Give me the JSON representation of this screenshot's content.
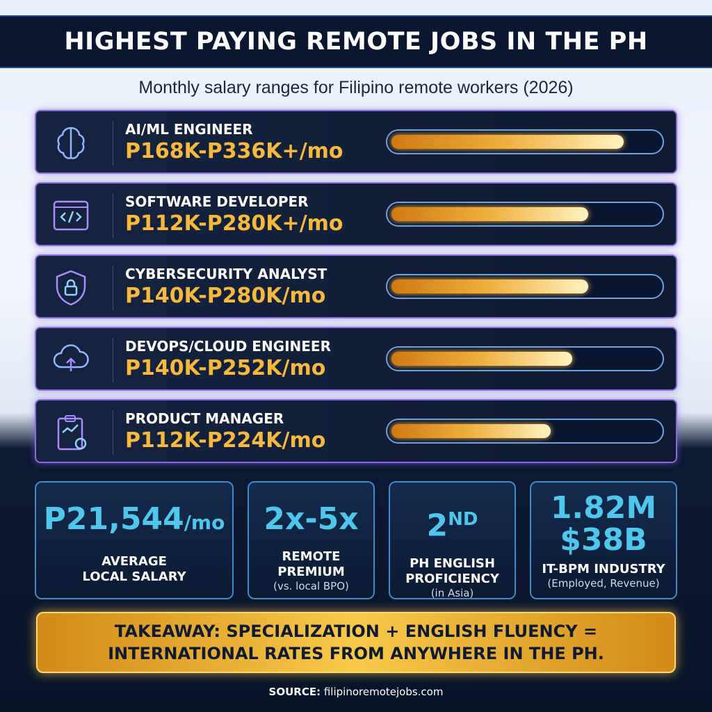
{
  "title": "HIGHEST PAYING REMOTE JOBS IN THE PH",
  "subtitle": "Monthly salary ranges for Filipino remote workers (2026)",
  "jobs": [
    {
      "icon": "brain-icon",
      "name": "AI/ML ENGINEER",
      "range": "P168K-P336K+/mo",
      "fill": 0.86
    },
    {
      "icon": "code-window-icon",
      "name": "SOFTWARE DEVELOPER",
      "range": "P112K-P280K+/mo",
      "fill": 0.73
    },
    {
      "icon": "shield-lock-icon",
      "name": "CYBERSECURITY ANALYST",
      "range": "P140K-P280K/mo",
      "fill": 0.73
    },
    {
      "icon": "cloud-icon",
      "name": "DEVOPS/CLOUD ENGINEER",
      "range": "P140K-P252K/mo",
      "fill": 0.67
    },
    {
      "icon": "clipboard-chart-icon",
      "name": "PRODUCT MANAGER",
      "range": "P112K-P224K/mo",
      "fill": 0.59
    }
  ],
  "stats": [
    {
      "value": "P21,544",
      "unit": "/mo",
      "label1": "AVERAGE",
      "label2": "LOCAL SALARY",
      "sub": ""
    },
    {
      "value": "2x-5x",
      "unit": "",
      "label1": "REMOTE",
      "label2": "PREMIUM",
      "sub": "(vs. local BPO)"
    },
    {
      "value": "2",
      "unit": "ND",
      "label1": "PH ENGLISH",
      "label2": "PROFICIENCY",
      "sub": "(in Asia)"
    },
    {
      "value": "1.82M",
      "unit": "$38B",
      "label1": "IT-BPM INDUSTRY",
      "label2": "",
      "sub": "(Employed, Revenue)"
    }
  ],
  "takeaway": {
    "line1": "TAKEAWAY: SPECIALIZATION + ENGLISH FLUENCY =",
    "line2": "INTERNATIONAL RATES FROM ANYWHERE IN THE PH."
  },
  "source": {
    "label": "SOURCE:",
    "text": "filipinoremotejobs.com"
  },
  "colors": {
    "accent": "#f6b93b",
    "stat": "#4fc6ec",
    "border": "#8a6be0"
  }
}
